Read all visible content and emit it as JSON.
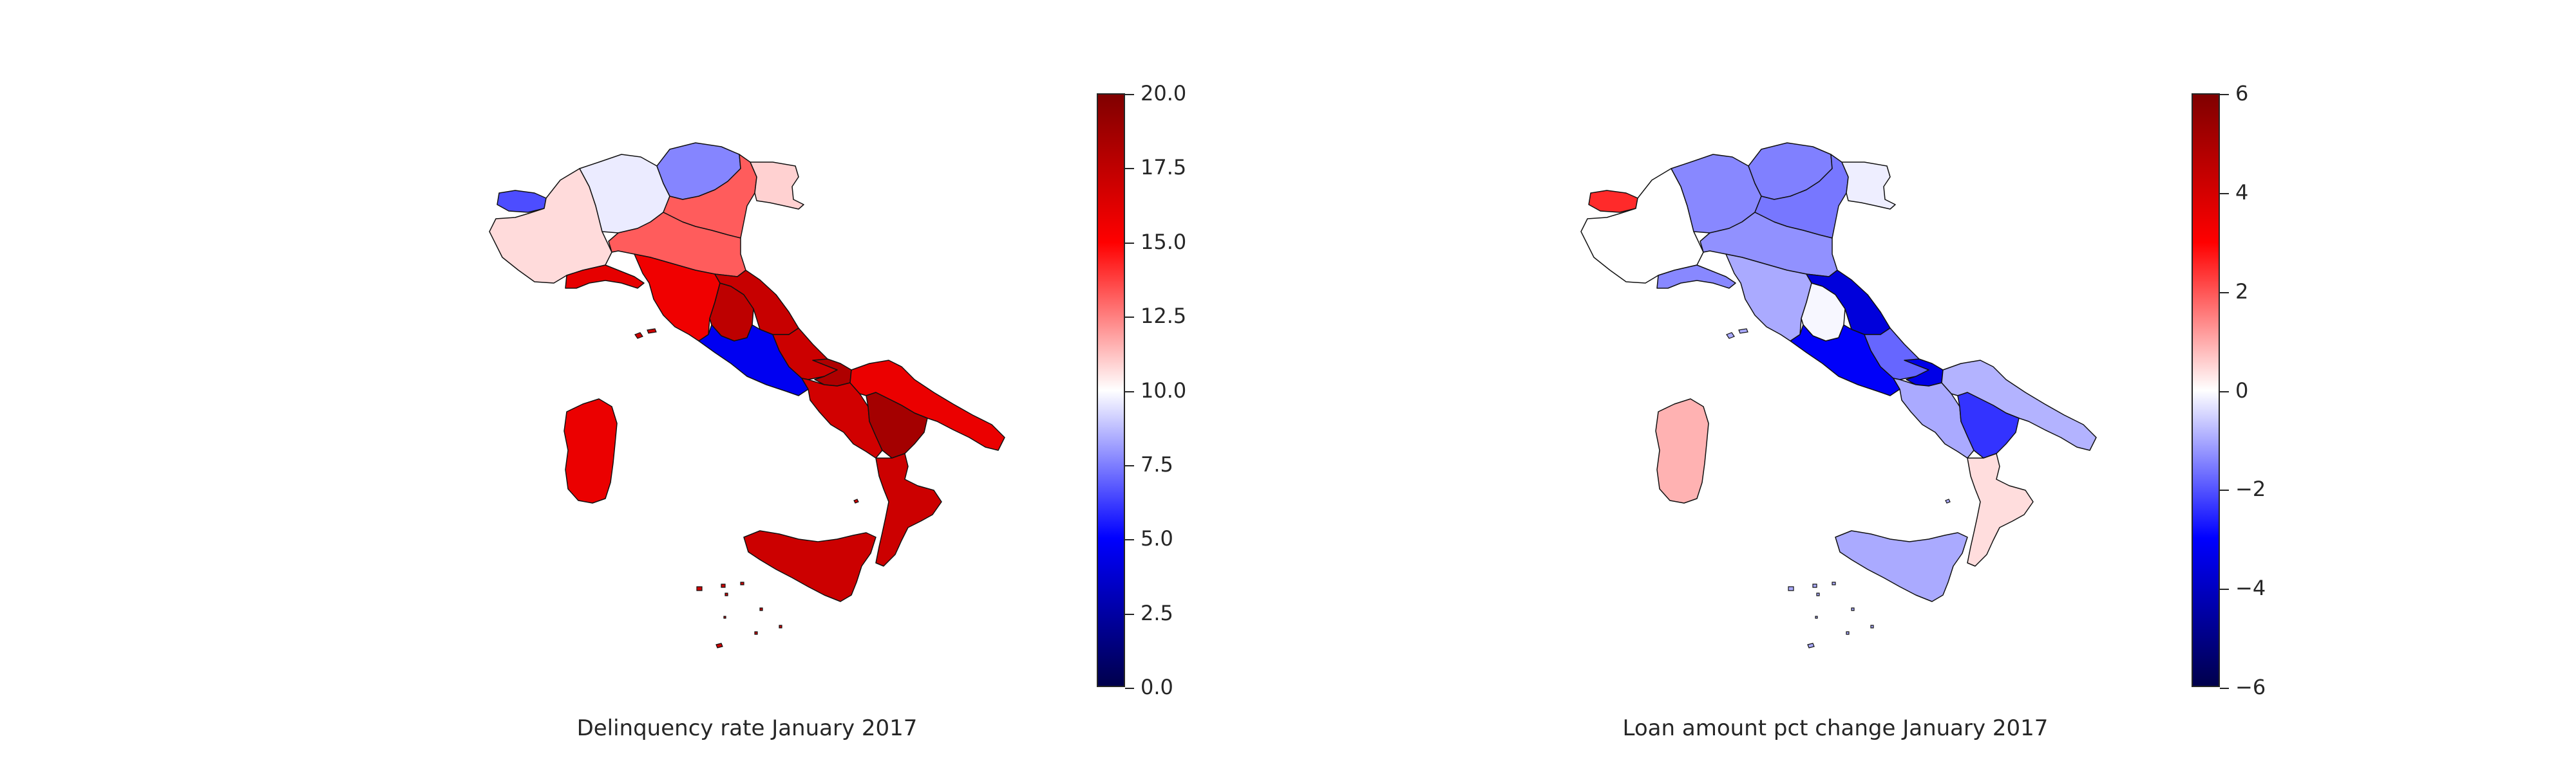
{
  "maps": [
    {
      "title": "Delinquency rate January 2017",
      "colorbar": {
        "min": 0,
        "max": 20,
        "ticks": [
          "0.0",
          "2.5",
          "5.0",
          "7.5",
          "10.0",
          "12.5",
          "15.0",
          "17.5",
          "20.0"
        ],
        "colormap": "seismic",
        "colors": [
          "#00004c",
          "#0000ff",
          "#ffffff",
          "#ff0000",
          "#800000"
        ]
      },
      "regions": {
        "valle-daosta": 6.5,
        "piemonte": 10.7,
        "lombardia": 9.6,
        "trentino": 7.6,
        "veneto": 13.2,
        "friuli": 10.9,
        "liguria": 16.0,
        "emilia-romagna": 13.2,
        "toscana": 15.6,
        "umbria": 17.6,
        "marche": 17.2,
        "lazio": 4.6,
        "abruzzo": 17.0,
        "molise": 18.2,
        "campania": 16.8,
        "puglia": 15.8,
        "basilicata": 18.6,
        "calabria": 17.0,
        "sicilia": 17.0,
        "sardegna": 15.8
      }
    },
    {
      "title": "Loan amount pct change January 2017",
      "colorbar": {
        "min": -6,
        "max": 6,
        "ticks": [
          "−6",
          "−4",
          "−2",
          "0",
          "2",
          "4",
          "6"
        ],
        "colormap": "seismic",
        "colors": [
          "#00004c",
          "#0000ff",
          "#ffffff",
          "#ff0000",
          "#800000"
        ]
      },
      "regions": {
        "valle-daosta": 2.5,
        "piemonte": 0.0,
        "lombardia": -1.4,
        "trentino": -1.5,
        "veneto": -1.6,
        "friuli": -0.2,
        "liguria": -1.4,
        "emilia-romagna": -1.3,
        "toscana": -1.0,
        "umbria": -0.1,
        "marche": -3.6,
        "lazio": -3.1,
        "abruzzo": -1.8,
        "molise": -3.4,
        "campania": -1.0,
        "puglia": -0.9,
        "basilicata": -2.4,
        "calabria": 0.4,
        "sicilia": -1.0,
        "sardegna": 0.9
      }
    }
  ]
}
